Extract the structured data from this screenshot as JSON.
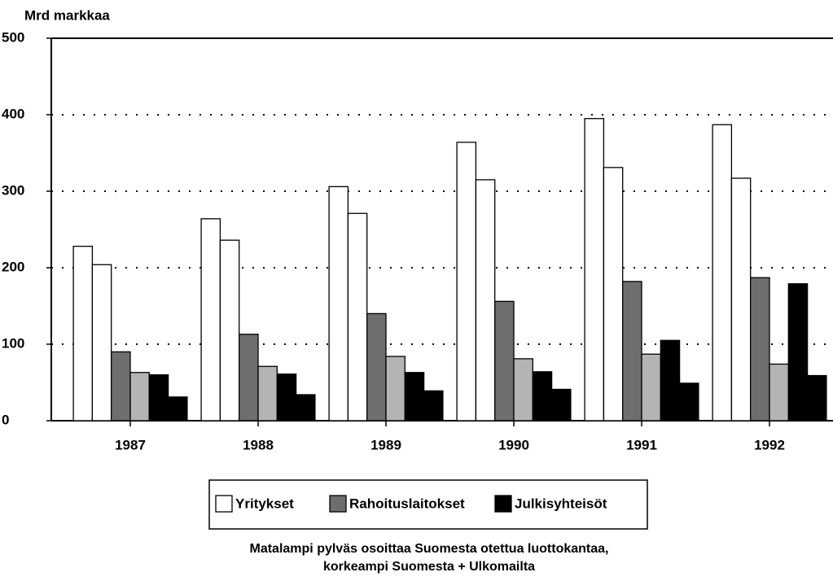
{
  "chart_data": {
    "type": "bar",
    "y_axis_label": "Mrd markkaa",
    "categories": [
      "1987",
      "1988",
      "1989",
      "1990",
      "1991",
      "1992"
    ],
    "series": [
      {
        "name": "Yritykset",
        "color": "#ffffff",
        "color_domestic": "#ffffff",
        "values": [
          228,
          264,
          306,
          364,
          395,
          387
        ],
        "values_domestic": [
          204,
          236,
          271,
          315,
          331,
          317
        ]
      },
      {
        "name": "Rahoituslaitokset",
        "color": "#6e6e6e",
        "color_domestic": "#b4b4b4",
        "values": [
          90,
          113,
          140,
          156,
          182,
          187
        ],
        "values_domestic": [
          63,
          71,
          84,
          81,
          87,
          74
        ]
      },
      {
        "name": "Julkisyhteisöt",
        "color": "#000000",
        "color_domestic": "#000000",
        "values": [
          60,
          61,
          63,
          64,
          105,
          179
        ],
        "values_domestic": [
          31,
          34,
          39,
          41,
          49,
          59
        ]
      }
    ],
    "ylim": [
      0,
      500
    ],
    "yticks": [
      0,
      100,
      200,
      300,
      400,
      500
    ],
    "grid": true,
    "note": [
      "Matalampi pylväs osoittaa Suomesta otettua luottokantaa,",
      "korkeampi Suomesta + Ulkomailta"
    ]
  }
}
